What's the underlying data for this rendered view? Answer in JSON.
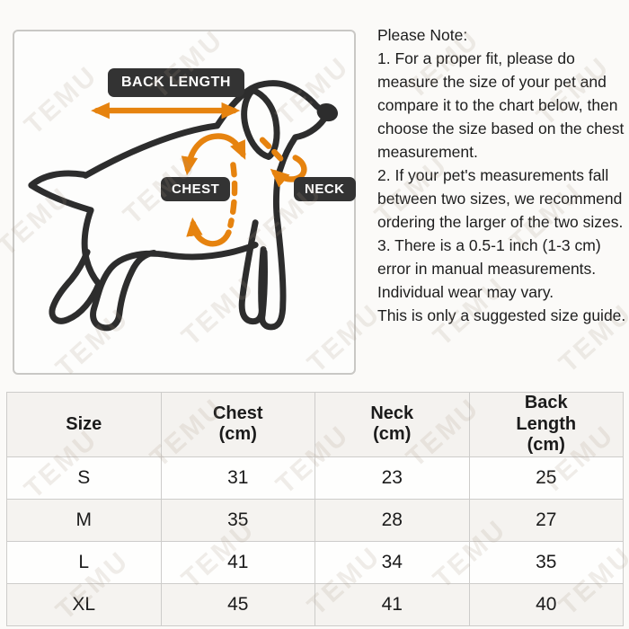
{
  "watermark": {
    "text": "TEMU"
  },
  "diagram": {
    "back_length_label": "BACK LENGTH",
    "chest_label": "CHEST",
    "neck_label": "NECK"
  },
  "note": {
    "title": "Please Note:",
    "items": [
      "1. For a proper fit, please do measure the size of your pet and compare it to the chart below, then choose the size based on the chest measurement.",
      "2. If your pet's measurements fall between two sizes, we recommend ordering the larger of the two sizes.",
      "3. There is a 0.5-1 inch (1-3 cm) error in manual measurements. Individual wear may vary.",
      "This is only a suggested size guide."
    ]
  },
  "table": {
    "headers": [
      [
        "Size"
      ],
      [
        "Chest",
        "(cm)"
      ],
      [
        "Neck",
        "(cm)"
      ],
      [
        "Back",
        "Length",
        "(cm)"
      ]
    ],
    "rows": [
      {
        "size": "S",
        "chest": "31",
        "neck": "23",
        "back_length": "25"
      },
      {
        "size": "M",
        "chest": "35",
        "neck": "28",
        "back_length": "27"
      },
      {
        "size": "L",
        "chest": "41",
        "neck": "34",
        "back_length": "35"
      },
      {
        "size": "XL",
        "chest": "45",
        "neck": "41",
        "back_length": "40"
      }
    ]
  },
  "colors": {
    "accent_orange": "#E6830F",
    "badge_dark": "#333333",
    "line_dark": "#2d2d2d"
  }
}
